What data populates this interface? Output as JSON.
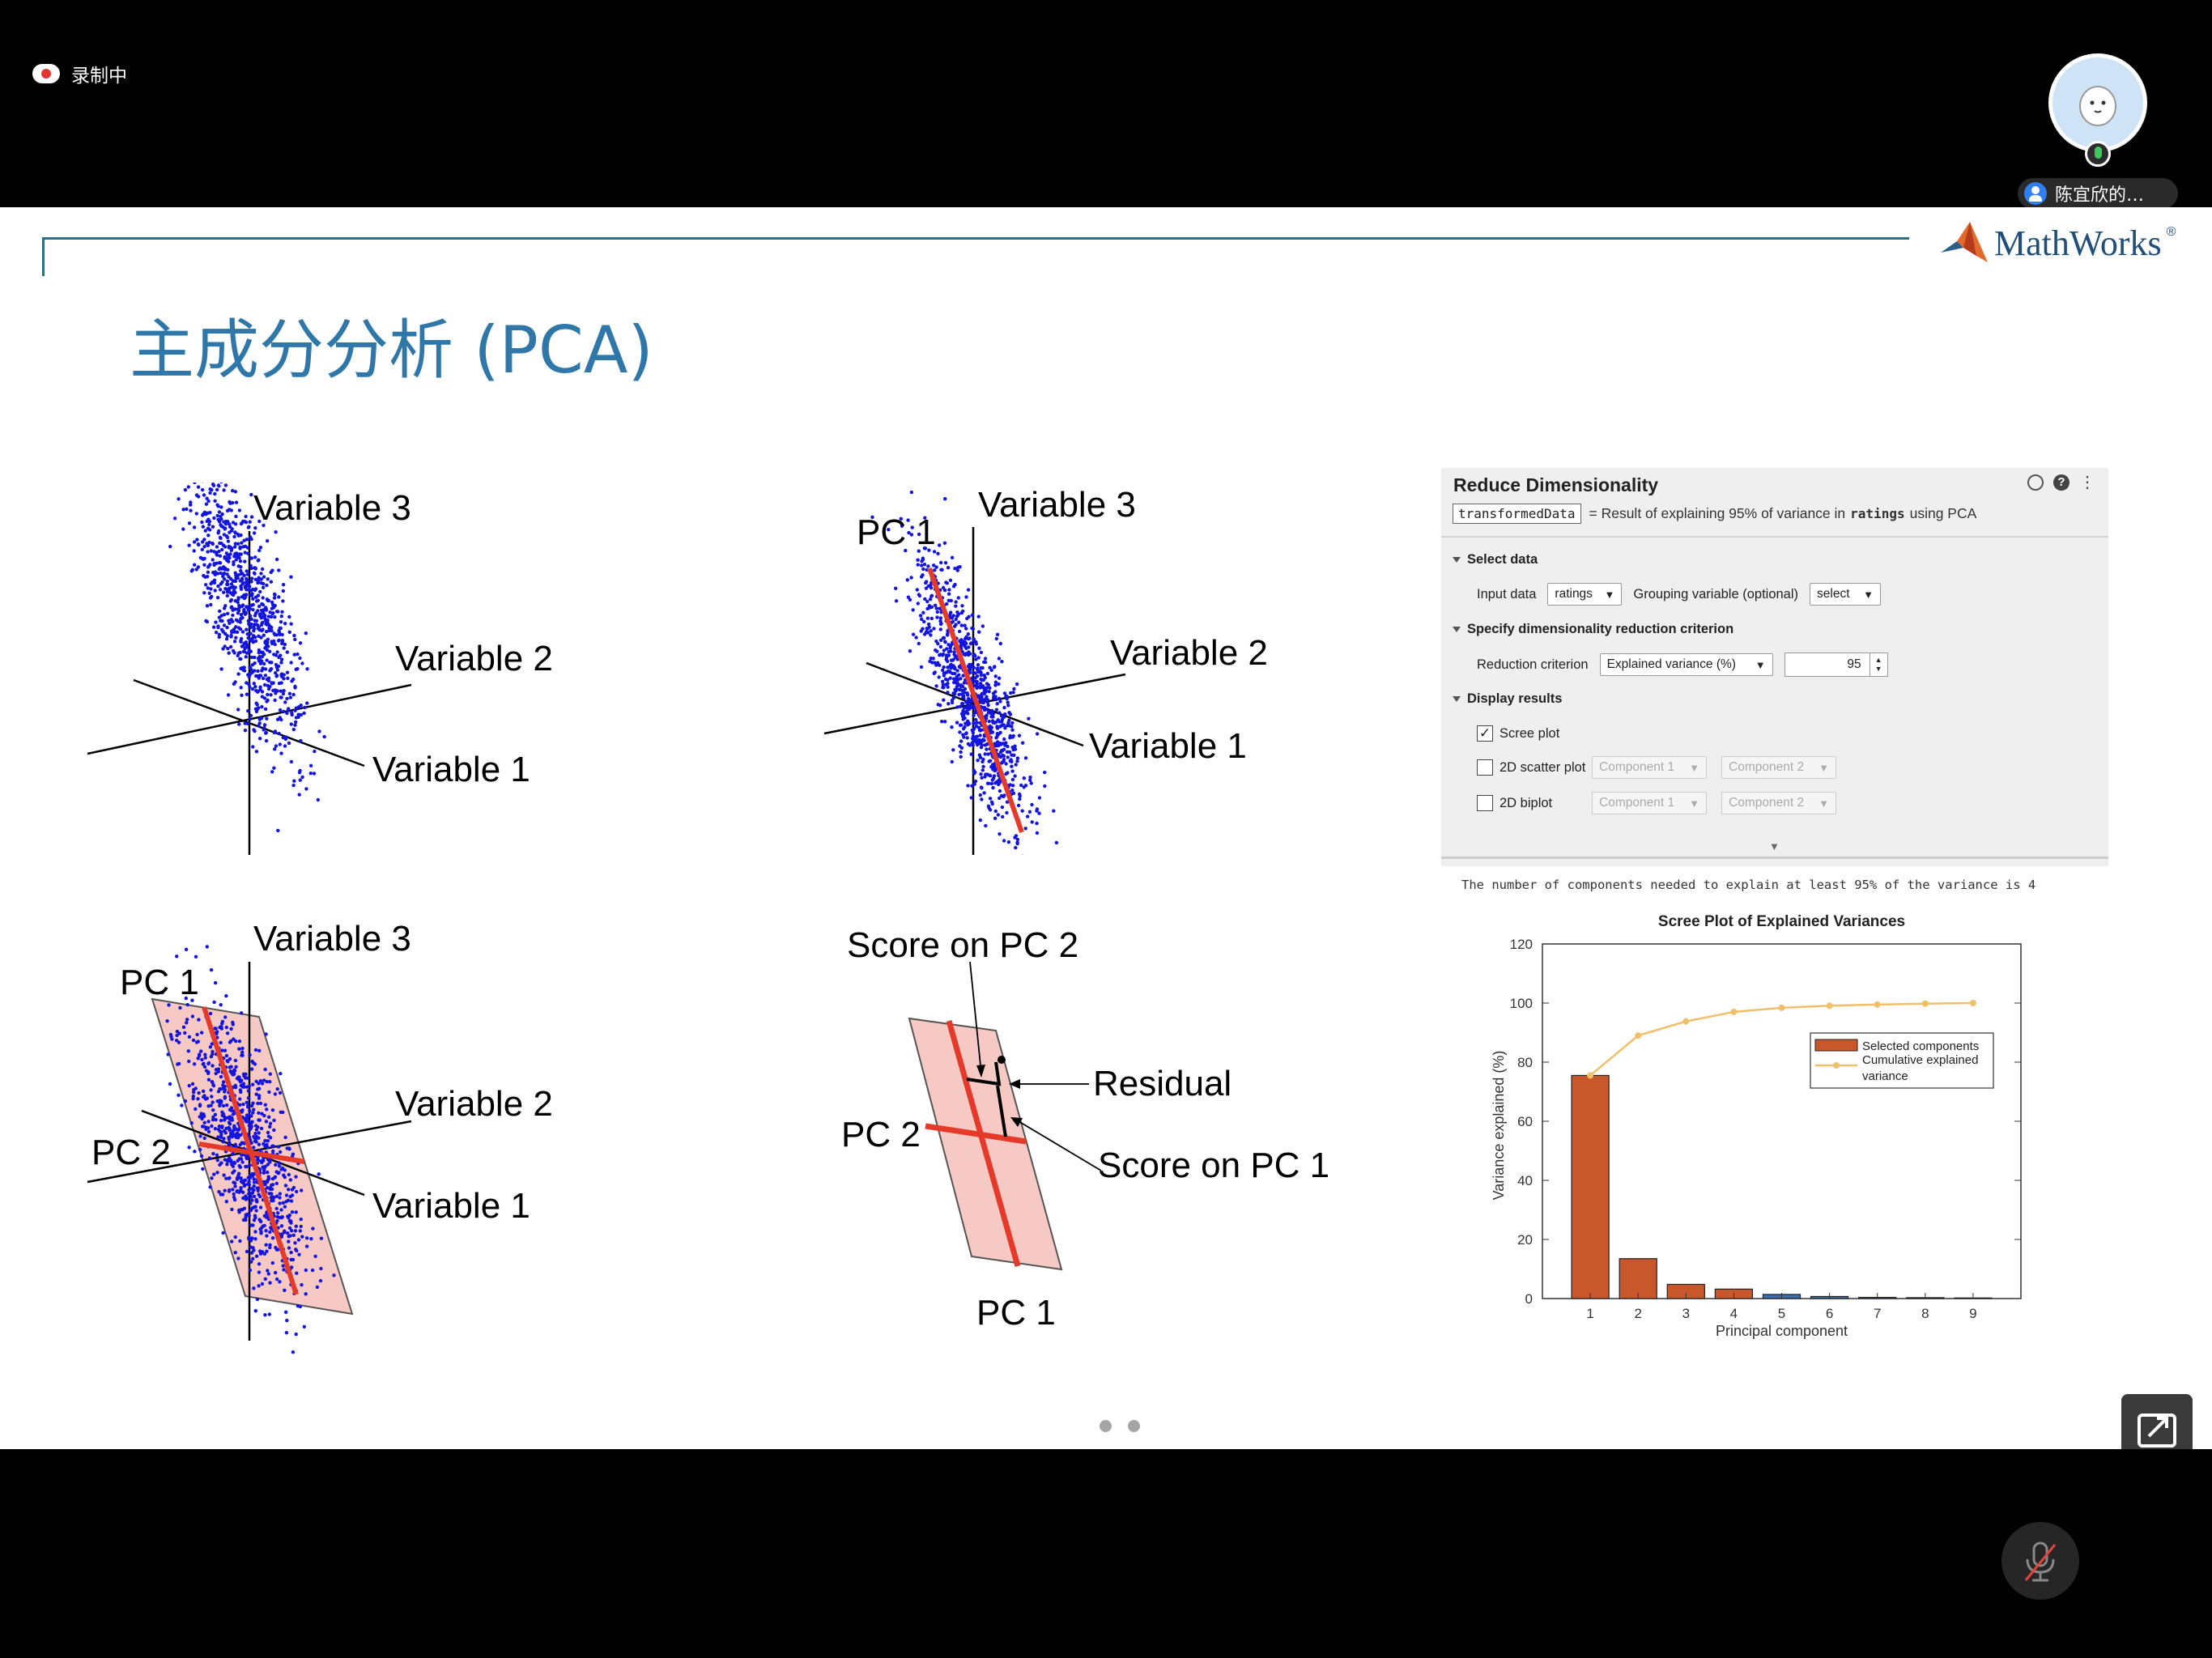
{
  "meeting": {
    "recording_label": "录制中",
    "participant_name": "陈宜欣的…"
  },
  "slide": {
    "title": "主成分分析 (PCA)",
    "logo_text": "MathWorks",
    "logo_reg": "®",
    "figures": {
      "fig1": {
        "var3": "Variable 3",
        "var2": "Variable 2",
        "var1": "Variable 1"
      },
      "fig2": {
        "pc1": "PC 1",
        "var3": "Variable 3",
        "var2": "Variable 2",
        "var1": "Variable 1"
      },
      "fig3": {
        "pc1": "PC 1",
        "pc2": "PC 2",
        "var3": "Variable 3",
        "var2": "Variable 2",
        "var1": "Variable 1"
      },
      "fig4": {
        "score_pc2": "Score on PC 2",
        "residual": "Residual",
        "pc2": "PC 2",
        "score_pc1": "Score on PC 1",
        "pc1": "PC 1"
      }
    },
    "live_task": {
      "title": "Reduce Dimensionality",
      "output_var": "transformedData",
      "summary_prefix": "= Result of explaining 95% of variance in",
      "summary_var": "ratings",
      "summary_suffix": "using PCA",
      "sections": {
        "select_data": "Select data",
        "criterion": "Specify dimensionality reduction criterion",
        "display": "Display results"
      },
      "input_data_label": "Input data",
      "input_data_value": "ratings",
      "grouping_label": "Grouping variable (optional)",
      "grouping_value": "select",
      "reduction_label": "Reduction criterion",
      "reduction_value": "Explained variance (%)",
      "reduction_amount": "95",
      "scree_label": "Scree plot",
      "scree_checked": true,
      "scatter_label": "2D scatter plot",
      "scatter_checked": false,
      "biplot_label": "2D biplot",
      "biplot_checked": false,
      "component1": "Component 1",
      "component2": "Component 2"
    },
    "console_output": "The number of components needed to explain at least 95% of the variance is 4"
  },
  "chart_data": {
    "type": "bar",
    "title": "Scree Plot of Explained Variances",
    "xlabel": "Principal component",
    "ylabel": "Variance explained (%)",
    "categories": [
      "1",
      "2",
      "3",
      "4",
      "5",
      "6",
      "7",
      "8",
      "9"
    ],
    "ylim": [
      0,
      120
    ],
    "yticks": [
      "0",
      "20",
      "40",
      "60",
      "80",
      "100",
      "120"
    ],
    "series": [
      {
        "name": "Selected components",
        "type": "bar",
        "color": "#c8572b",
        "values": [
          75.5,
          13.5,
          4.8,
          3.2,
          1.4,
          0.7,
          0.4,
          0.3,
          0.2
        ],
        "selected_count": 4,
        "unselected_color": "#3d6ea8"
      },
      {
        "name": "Cumulative explained variance",
        "type": "line",
        "color": "#efc06a",
        "values": [
          75.5,
          89.0,
          93.8,
          97.0,
          98.4,
          99.1,
          99.5,
          99.8,
          100.0
        ]
      }
    ],
    "legend_position": "upper-right"
  }
}
